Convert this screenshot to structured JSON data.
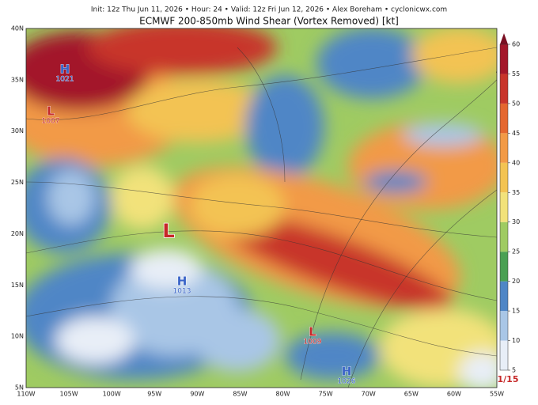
{
  "header": {
    "info": "Init: 12z Thu Jun 11, 2026 • Hour: 24 • Valid: 12z Fri Jun 12, 2026 • Alex Boreham • cyclonicwx.com",
    "title": "ECMWF 200-850mb Wind Shear (Vortex Removed) [kt]"
  },
  "lat_labels": [
    "40N",
    "35N",
    "30N",
    "25N",
    "20N",
    "15N",
    "10N",
    "5N"
  ],
  "lon_labels": [
    "110W",
    "105W",
    "100W",
    "95W",
    "90W",
    "85W",
    "80W",
    "75W",
    "70W",
    "65W",
    "60W",
    "55W"
  ],
  "pressure_centers": [
    {
      "letter": "H",
      "value": "1021"
    },
    {
      "letter": "L",
      "value": "1007"
    },
    {
      "letter": "L"
    },
    {
      "letter": "H",
      "value": "1013"
    },
    {
      "letter": "L",
      "value": "1009"
    },
    {
      "letter": "H",
      "value": "1026"
    }
  ],
  "colorbar": {
    "ticks": [
      5,
      10,
      15,
      20,
      25,
      30,
      35,
      40,
      45,
      50,
      55,
      60
    ],
    "colors": [
      "#e8eef7",
      "#a9c6e6",
      "#4f86c6",
      "#4aa053",
      "#9fcb62",
      "#f2e27a",
      "#f3c352",
      "#f29a46",
      "#e4672f",
      "#c8352b",
      "#a3172a"
    ],
    "cap_color": "#7a0f22"
  },
  "frame_label": "1/15"
}
